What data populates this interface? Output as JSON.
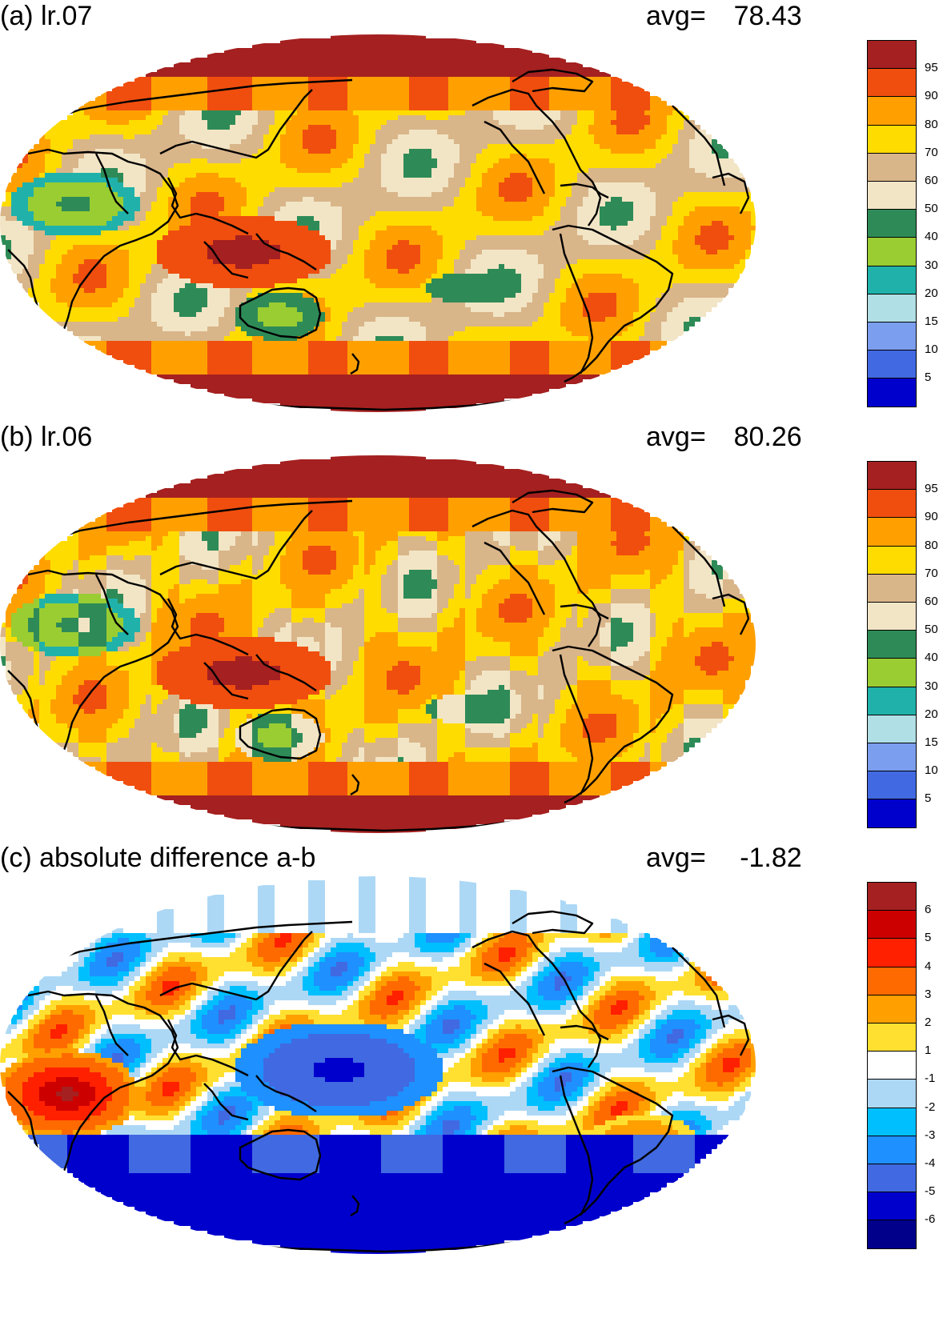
{
  "panels": [
    {
      "title": "(a) lr.07",
      "avg_label": "avg=",
      "avg_value": "78.43",
      "scale": "pct",
      "bias": 0
    },
    {
      "title": "(b) lr.06",
      "avg_label": "avg=",
      "avg_value": "80.26",
      "scale": "pct",
      "bias": 4
    },
    {
      "title": "(c) absolute difference a-b",
      "avg_label": "avg=",
      "avg_value": "-1.82",
      "scale": "diff",
      "bias": 0
    }
  ],
  "colorbars": {
    "pct": {
      "labels": [
        "95",
        "90",
        "80",
        "70",
        "60",
        "50",
        "40",
        "30",
        "20",
        "15",
        "10",
        "5"
      ],
      "colors": [
        "#a52020",
        "#f04e0e",
        "#ffa000",
        "#ffdc00",
        "#d9b58a",
        "#f2e5c5",
        "#2e8b57",
        "#9acd32",
        "#20b2aa",
        "#b0e0e6",
        "#7b9eef",
        "#4169e1",
        "#0000cd"
      ]
    },
    "diff": {
      "labels": [
        "6",
        "5",
        "4",
        "3",
        "2",
        "1",
        "-1",
        "-2",
        "-3",
        "-4",
        "-5",
        "-6"
      ],
      "colors": [
        "#a52020",
        "#cd0000",
        "#ff2000",
        "#ff6a00",
        "#ffa000",
        "#ffe030",
        "#ffffff",
        "#add8f5",
        "#00bfff",
        "#1e90ff",
        "#4169e1",
        "#0000cd",
        "#00008b"
      ]
    }
  }
}
